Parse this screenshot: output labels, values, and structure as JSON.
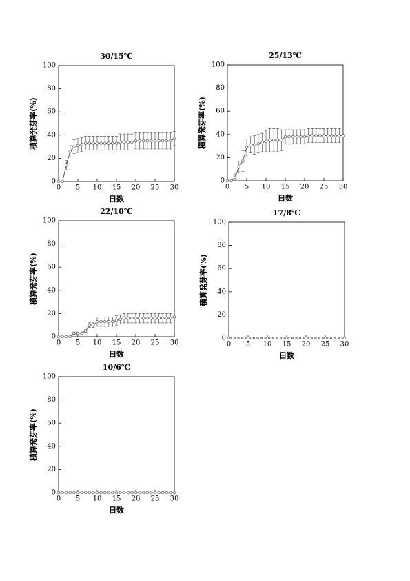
{
  "chart_data": [
    {
      "type": "line",
      "title": "30/15℃",
      "xlabel": "日数",
      "ylabel": "積算発芽率(%)",
      "x": [
        0,
        1,
        2,
        3,
        4,
        5,
        6,
        7,
        8,
        9,
        10,
        11,
        12,
        13,
        14,
        15,
        16,
        17,
        18,
        19,
        20,
        21,
        22,
        23,
        24,
        25,
        26,
        27,
        28,
        29,
        30
      ],
      "xlim": [
        0,
        30
      ],
      "xticks": [
        0,
        5,
        10,
        15,
        20,
        25,
        30
      ],
      "ylim": [
        0,
        100
      ],
      "yticks": [
        0,
        20,
        40,
        60,
        80,
        100
      ],
      "series": [
        {
          "color": "#555555",
          "values": [
            0,
            0,
            14,
            26,
            30,
            31,
            32,
            33,
            33,
            33,
            33,
            33,
            33,
            33,
            33,
            33,
            34,
            34,
            34,
            34,
            35,
            35,
            35,
            35,
            35,
            35,
            35,
            35,
            35,
            35,
            37
          ],
          "errors": [
            0,
            0,
            4,
            5,
            6,
            6,
            6,
            6,
            6,
            6,
            6,
            6,
            6,
            6,
            6,
            6,
            7,
            7,
            7,
            7,
            7,
            7,
            7,
            7,
            7,
            7,
            7,
            7,
            7,
            7,
            6
          ]
        }
      ]
    },
    {
      "type": "line",
      "title": "25/13℃",
      "xlabel": "日数",
      "ylabel": "積算発芽率(%)",
      "x": [
        0,
        1,
        2,
        3,
        4,
        5,
        6,
        7,
        8,
        9,
        10,
        11,
        12,
        13,
        14,
        15,
        16,
        17,
        18,
        19,
        20,
        21,
        22,
        23,
        24,
        25,
        26,
        27,
        28,
        29,
        30
      ],
      "xlim": [
        0,
        30
      ],
      "xticks": [
        0,
        5,
        10,
        15,
        20,
        25,
        30
      ],
      "ylim": [
        0,
        100
      ],
      "yticks": [
        0,
        20,
        40,
        60,
        80,
        100
      ],
      "series": [
        {
          "color": "#555555",
          "values": [
            0,
            0,
            3,
            12,
            17,
            29,
            31,
            31,
            32,
            33,
            34,
            35,
            35,
            35,
            35,
            38,
            38,
            38,
            38,
            38,
            38,
            39,
            39,
            39,
            39,
            39,
            39,
            39,
            39,
            39,
            39
          ],
          "errors": [
            0,
            0,
            3,
            5,
            9,
            7,
            7,
            8,
            8,
            8,
            9,
            10,
            10,
            10,
            9,
            6,
            6,
            6,
            6,
            6,
            6,
            6,
            6,
            6,
            6,
            6,
            6,
            6,
            6,
            6,
            0
          ]
        }
      ]
    },
    {
      "type": "line",
      "title": "22/10℃",
      "xlabel": "日数",
      "ylabel": "積算発芽率(%)",
      "x": [
        0,
        1,
        2,
        3,
        4,
        5,
        6,
        7,
        8,
        9,
        10,
        11,
        12,
        13,
        14,
        15,
        16,
        17,
        18,
        19,
        20,
        21,
        22,
        23,
        24,
        25,
        26,
        27,
        28,
        29,
        30
      ],
      "xlim": [
        0,
        30
      ],
      "xticks": [
        0,
        5,
        10,
        15,
        20,
        25,
        30
      ],
      "ylim": [
        0,
        100
      ],
      "yticks": [
        0,
        20,
        40,
        60,
        80,
        100
      ],
      "series": [
        {
          "color": "#555555",
          "values": [
            0,
            0,
            0,
            0,
            3,
            3,
            3,
            5,
            10,
            10,
            13,
            13,
            13,
            13,
            13,
            14,
            15,
            16,
            16,
            16,
            16,
            16,
            16,
            16,
            16,
            16,
            16,
            16,
            16,
            16,
            17
          ],
          "errors": [
            0,
            0,
            0,
            0,
            1,
            1,
            1,
            1,
            2,
            2,
            4,
            4,
            4,
            4,
            4,
            4,
            4,
            4,
            4,
            4,
            4,
            4,
            4,
            4,
            4,
            4,
            4,
            4,
            4,
            4,
            0
          ]
        }
      ]
    },
    {
      "type": "line",
      "title": "17/8℃",
      "xlabel": "日数",
      "ylabel": "積算発芽率(%)",
      "x": [
        0,
        1,
        2,
        3,
        4,
        5,
        6,
        7,
        8,
        9,
        10,
        11,
        12,
        13,
        14,
        15,
        16,
        17,
        18,
        19,
        20,
        21,
        22,
        23,
        24,
        25,
        26,
        27,
        28,
        29,
        30
      ],
      "xlim": [
        0,
        30
      ],
      "xticks": [
        0,
        5,
        10,
        15,
        20,
        25,
        30
      ],
      "ylim": [
        0,
        100
      ],
      "yticks": [
        0,
        20,
        40,
        60,
        80,
        100
      ],
      "series": [
        {
          "color": "#555555",
          "values": [
            0,
            0,
            0,
            0,
            0,
            0,
            0,
            0,
            0,
            0,
            0,
            0,
            0,
            0,
            0,
            0,
            0,
            0,
            0,
            0,
            0,
            0,
            0,
            0,
            0,
            0,
            0,
            0,
            0,
            0,
            0
          ]
        }
      ]
    },
    {
      "type": "line",
      "title": "10/6℃",
      "xlabel": "日数",
      "ylabel": "積算発芽率(%)",
      "x": [
        0,
        1,
        2,
        3,
        4,
        5,
        6,
        7,
        8,
        9,
        10,
        11,
        12,
        13,
        14,
        15,
        16,
        17,
        18,
        19,
        20,
        21,
        22,
        23,
        24,
        25,
        26,
        27,
        28,
        29,
        30
      ],
      "xlim": [
        0,
        30
      ],
      "xticks": [
        0,
        5,
        10,
        15,
        20,
        25,
        30
      ],
      "ylim": [
        0,
        100
      ],
      "yticks": [
        0,
        20,
        40,
        60,
        80,
        100
      ],
      "series": [
        {
          "color": "#555555",
          "values": [
            0,
            0,
            0,
            0,
            0,
            0,
            0,
            0,
            0,
            0,
            0,
            0,
            0,
            0,
            0,
            0,
            0,
            0,
            0,
            0,
            0,
            0,
            0,
            0,
            0,
            0,
            0,
            0,
            0,
            0,
            0
          ]
        }
      ]
    }
  ]
}
